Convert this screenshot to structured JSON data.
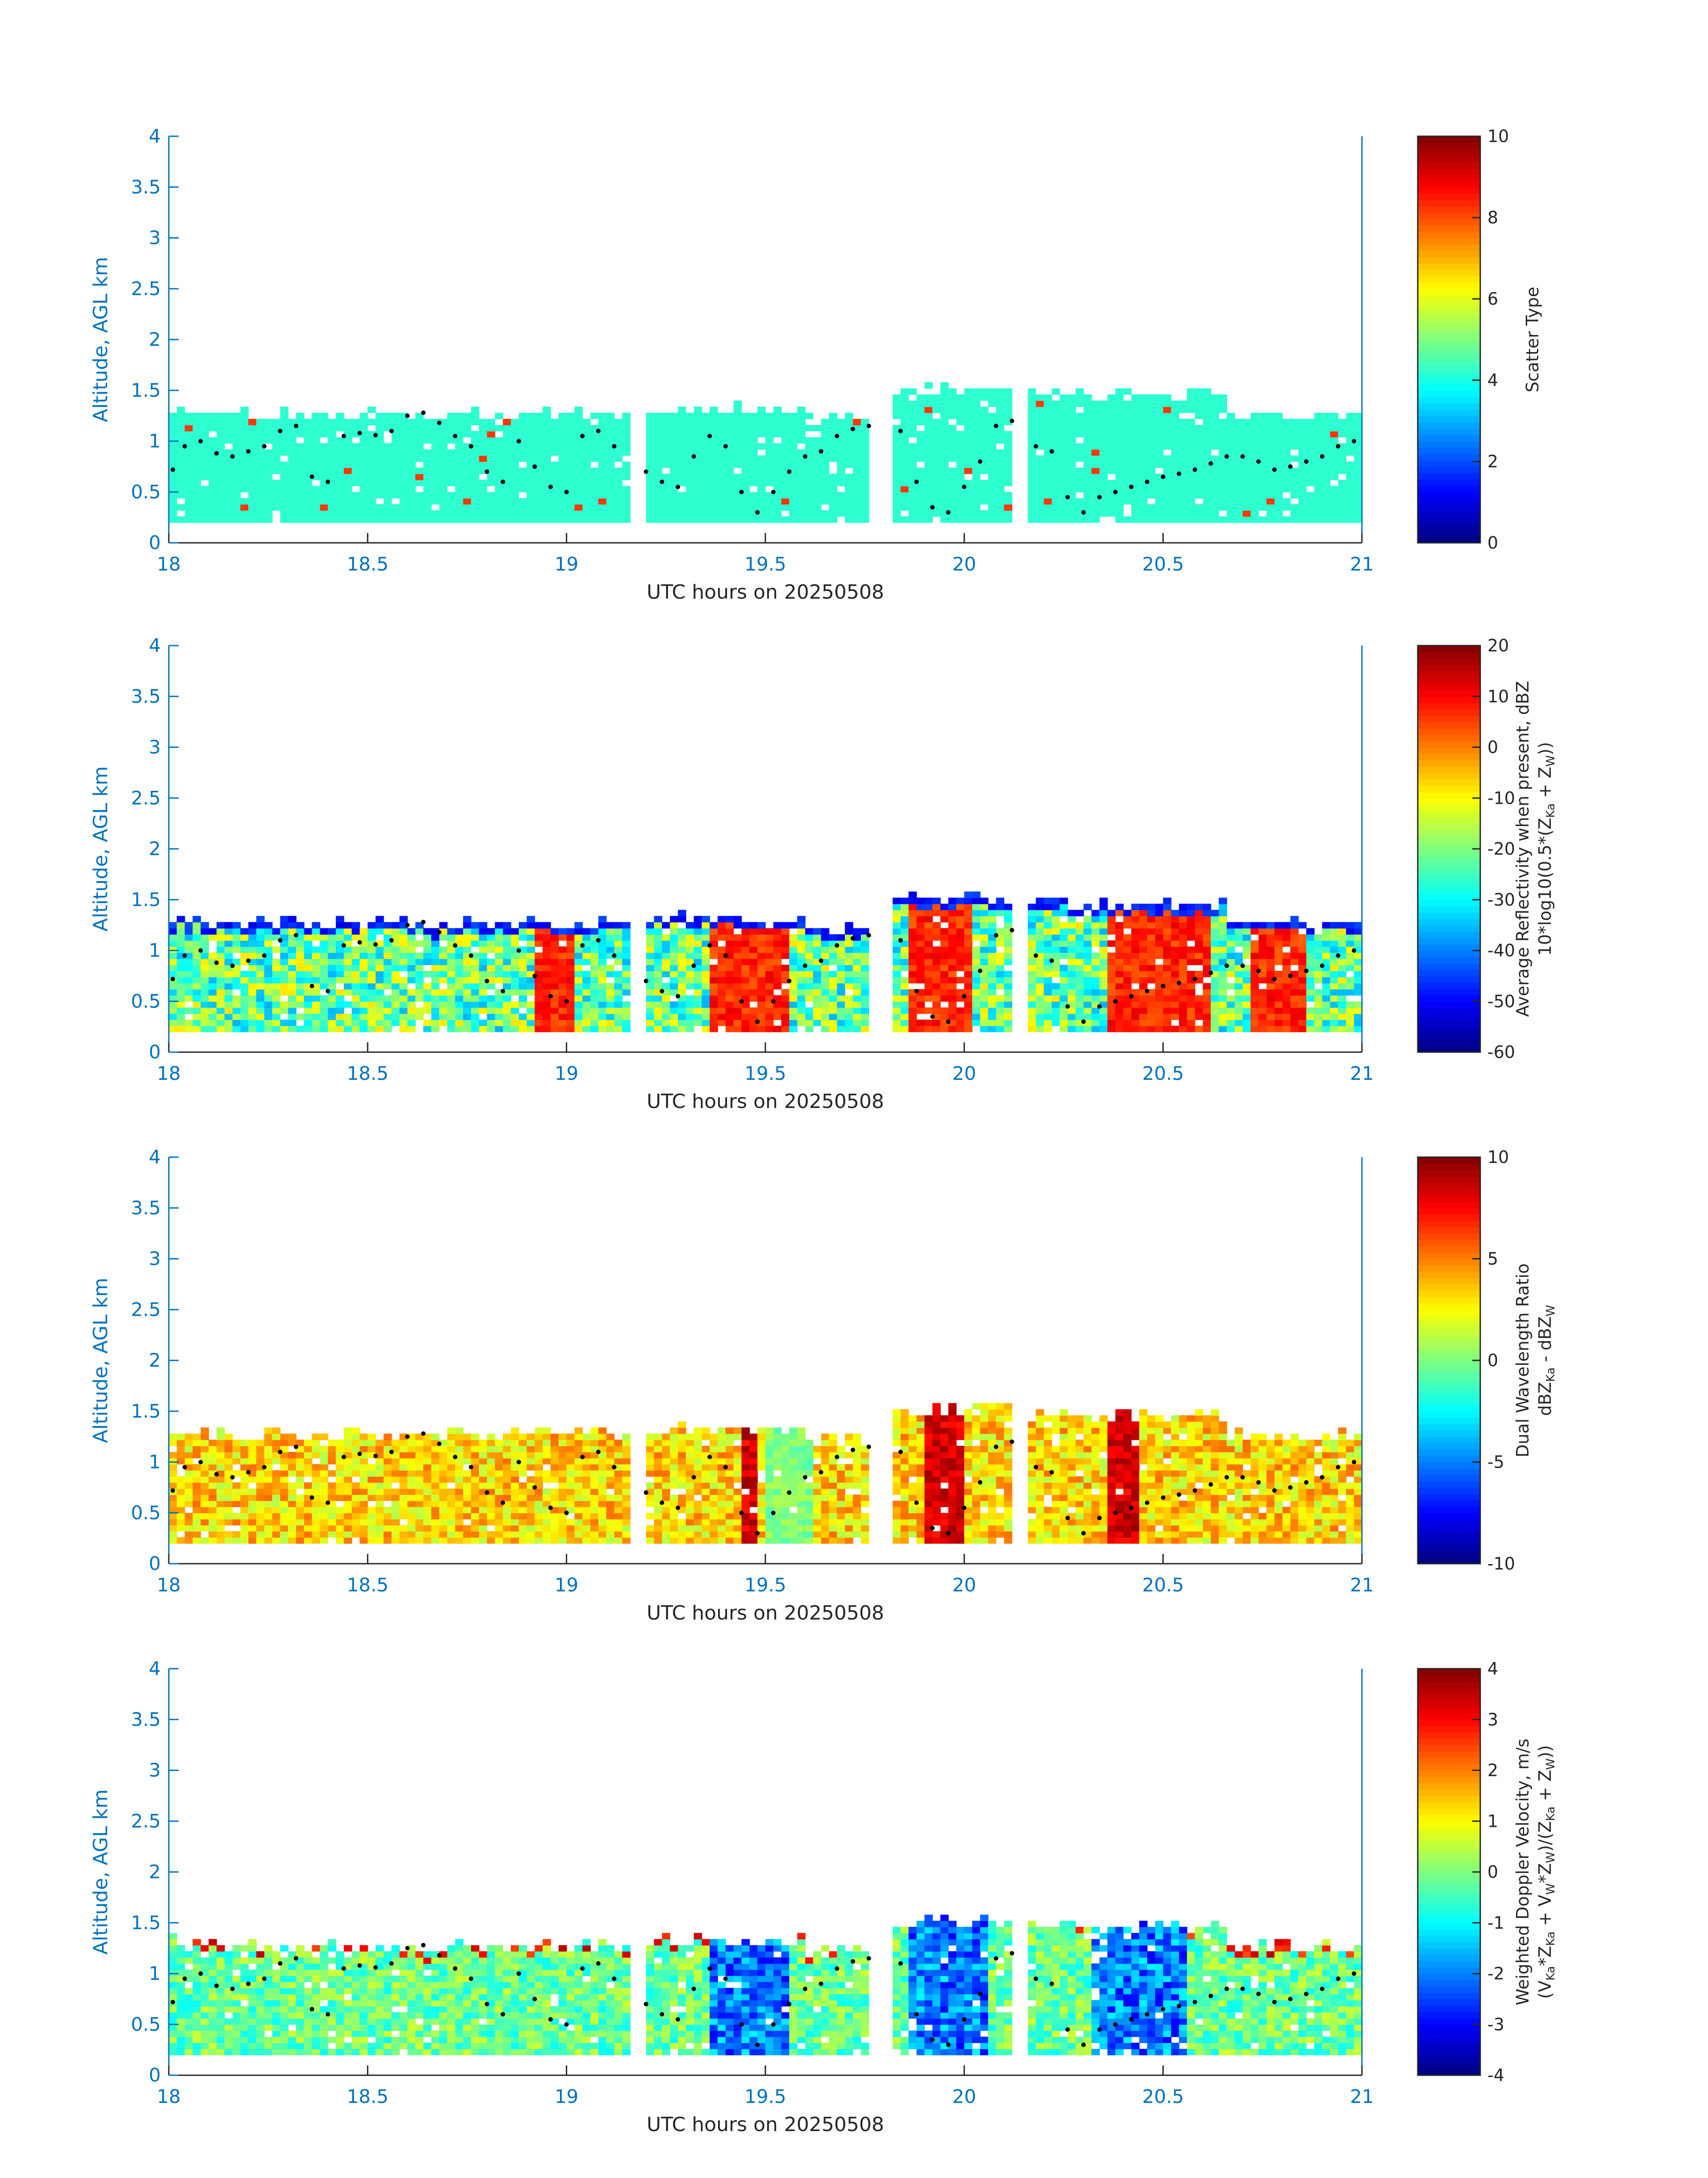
{
  "chart_data": [
    {
      "type": "heatmap",
      "xlabel": "UTC hours on 20250508",
      "ylabel": "Altitude, AGL km",
      "xlim": [
        18,
        21
      ],
      "ylim": [
        0,
        4
      ],
      "xticks": [
        "18",
        "18.5",
        "19",
        "19.5",
        "20",
        "20.5",
        "21"
      ],
      "yticks": [
        "0",
        "0.5",
        "1",
        "1.5",
        "2",
        "2.5",
        "3",
        "3.5",
        "4"
      ],
      "colorbar": {
        "label_lines": [
          "Scatter Type"
        ],
        "range": [
          0,
          10
        ],
        "ticks": [
          "0",
          "2",
          "4",
          "6",
          "8",
          "10"
        ],
        "colormap": "jet"
      },
      "field": "scatter_type",
      "overlay": "black dots marking cloud-base height"
    },
    {
      "type": "heatmap",
      "xlabel": "UTC hours on 20250508",
      "ylabel": "Altitude, AGL km",
      "xlim": [
        18,
        21
      ],
      "ylim": [
        0,
        4
      ],
      "xticks": [
        "18",
        "18.5",
        "19",
        "19.5",
        "20",
        "20.5",
        "21"
      ],
      "yticks": [
        "0",
        "0.5",
        "1",
        "1.5",
        "2",
        "2.5",
        "3",
        "3.5",
        "4"
      ],
      "colorbar": {
        "label_lines": [
          "Average Reflectivity when present, dBZ",
          "10*log10(0.5*(Z",
          "Ka",
          " + Z",
          "W",
          "))"
        ],
        "range": [
          -60,
          20
        ],
        "ticks": [
          "-60",
          "-50",
          "-40",
          "-30",
          "-20",
          "-10",
          "0",
          "10",
          "20"
        ],
        "colormap": "jet"
      },
      "field": "reflectivity",
      "overlay": "black dots marking cloud-base height"
    },
    {
      "type": "heatmap",
      "xlabel": "UTC hours on 20250508",
      "ylabel": "Altitude, AGL km",
      "xlim": [
        18,
        21
      ],
      "ylim": [
        0,
        4
      ],
      "xticks": [
        "18",
        "18.5",
        "19",
        "19.5",
        "20",
        "20.5",
        "21"
      ],
      "yticks": [
        "0",
        "0.5",
        "1",
        "1.5",
        "2",
        "2.5",
        "3",
        "3.5",
        "4"
      ],
      "colorbar": {
        "label_lines": [
          "Dual Wavelength Ratio",
          "dBZ",
          "Ka",
          " - dBZ",
          "W"
        ],
        "range": [
          -10,
          10
        ],
        "ticks": [
          "-10",
          "-5",
          "0",
          "5",
          "10"
        ],
        "colormap": "jet"
      },
      "field": "dwr",
      "overlay": "black dots marking cloud-base height"
    },
    {
      "type": "heatmap",
      "xlabel": "UTC hours on 20250508",
      "ylabel": "Altitude, AGL km",
      "xlim": [
        18,
        21
      ],
      "ylim": [
        0,
        4
      ],
      "xticks": [
        "18",
        "18.5",
        "19",
        "19.5",
        "20",
        "20.5",
        "21"
      ],
      "yticks": [
        "0",
        "0.5",
        "1",
        "1.5",
        "2",
        "2.5",
        "3",
        "3.5",
        "4"
      ],
      "colorbar": {
        "label_lines": [
          "Weighted Doppler Velocity, m/s",
          "(V",
          "Ka",
          "*Z",
          "Ka",
          " + V",
          "W",
          "*Z",
          "W",
          ")/(Z",
          "Ka",
          " + Z",
          "W",
          "))"
        ],
        "range": [
          -4,
          4
        ],
        "ticks": [
          "-4",
          "-3",
          "-2",
          "-1",
          "0",
          "1",
          "2",
          "3",
          "4"
        ],
        "colormap": "jet"
      },
      "field": "velocity",
      "overlay": "black dots marking cloud-base height"
    }
  ],
  "cloud_segments": [
    [
      18.0,
      18.09,
      1.35
    ],
    [
      18.09,
      18.35,
      1.3
    ],
    [
      18.35,
      18.6,
      1.3
    ],
    [
      18.6,
      18.7,
      1.28
    ],
    [
      18.7,
      19.15,
      1.3
    ],
    [
      19.2,
      19.6,
      1.35
    ],
    [
      19.6,
      19.75,
      1.25
    ],
    [
      19.82,
      20.12,
      1.55
    ],
    [
      20.16,
      20.65,
      1.5
    ],
    [
      20.65,
      21.0,
      1.3
    ]
  ],
  "cloud_base_dots": [
    [
      18.01,
      0.72
    ],
    [
      18.04,
      0.95
    ],
    [
      18.08,
      1.0
    ],
    [
      18.12,
      0.88
    ],
    [
      18.16,
      0.85
    ],
    [
      18.2,
      0.9
    ],
    [
      18.24,
      0.95
    ],
    [
      18.28,
      1.1
    ],
    [
      18.32,
      1.15
    ],
    [
      18.36,
      0.65
    ],
    [
      18.4,
      0.6
    ],
    [
      18.44,
      1.05
    ],
    [
      18.48,
      1.08
    ],
    [
      18.52,
      1.06
    ],
    [
      18.56,
      1.1
    ],
    [
      18.6,
      1.25
    ],
    [
      18.64,
      1.28
    ],
    [
      18.68,
      1.18
    ],
    [
      18.72,
      1.05
    ],
    [
      18.76,
      0.95
    ],
    [
      18.8,
      0.7
    ],
    [
      18.84,
      0.6
    ],
    [
      18.88,
      1.0
    ],
    [
      18.92,
      0.75
    ],
    [
      18.96,
      0.55
    ],
    [
      19.0,
      0.5
    ],
    [
      19.04,
      1.05
    ],
    [
      19.08,
      1.1
    ],
    [
      19.12,
      0.95
    ],
    [
      19.2,
      0.7
    ],
    [
      19.24,
      0.6
    ],
    [
      19.28,
      0.55
    ],
    [
      19.32,
      0.85
    ],
    [
      19.36,
      1.05
    ],
    [
      19.4,
      0.95
    ],
    [
      19.44,
      0.5
    ],
    [
      19.48,
      0.3
    ],
    [
      19.52,
      0.5
    ],
    [
      19.56,
      0.7
    ],
    [
      19.6,
      0.85
    ],
    [
      19.64,
      0.9
    ],
    [
      19.68,
      1.05
    ],
    [
      19.72,
      1.12
    ],
    [
      19.76,
      1.15
    ],
    [
      19.84,
      1.1
    ],
    [
      19.88,
      0.6
    ],
    [
      19.92,
      0.35
    ],
    [
      19.96,
      0.3
    ],
    [
      20.0,
      0.55
    ],
    [
      20.04,
      0.8
    ],
    [
      20.08,
      1.15
    ],
    [
      20.12,
      1.2
    ],
    [
      20.18,
      0.95
    ],
    [
      20.22,
      0.9
    ],
    [
      20.26,
      0.45
    ],
    [
      20.3,
      0.3
    ],
    [
      20.34,
      0.45
    ],
    [
      20.38,
      0.5
    ],
    [
      20.42,
      0.55
    ],
    [
      20.46,
      0.6
    ],
    [
      20.5,
      0.65
    ],
    [
      20.54,
      0.68
    ],
    [
      20.58,
      0.72
    ],
    [
      20.62,
      0.78
    ],
    [
      20.66,
      0.85
    ],
    [
      20.7,
      0.85
    ],
    [
      20.74,
      0.8
    ],
    [
      20.78,
      0.72
    ],
    [
      20.82,
      0.75
    ],
    [
      20.86,
      0.8
    ],
    [
      20.9,
      0.85
    ],
    [
      20.94,
      0.95
    ],
    [
      20.98,
      1.0
    ]
  ]
}
